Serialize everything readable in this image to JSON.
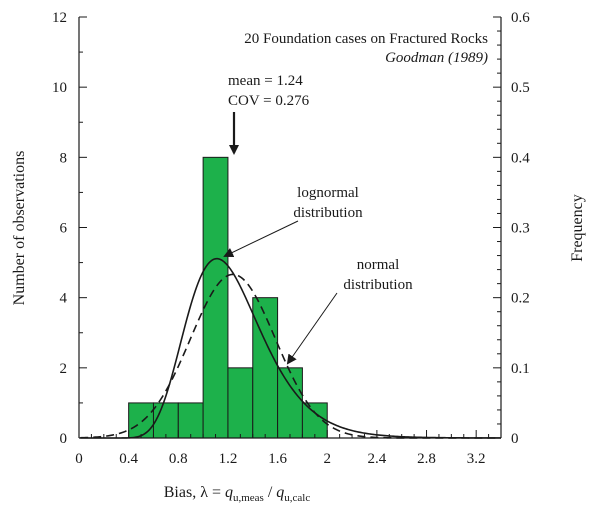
{
  "chart_data": {
    "type": "bar",
    "subtype": "histogram",
    "title": "20 Foundation cases on Fractured Rocks",
    "source": "Goodman (1989)",
    "xlabel_prefix": "Bias, λ = ",
    "xlabel_num": "q",
    "xlabel_num_sub": "u,meas",
    "xlabel_sep": " / ",
    "xlabel_den": "q",
    "xlabel_den_sub": "u,calc",
    "ylabel": "Number of observations",
    "y2label": "Frequency",
    "xlim": [
      0,
      3.4
    ],
    "ylim": [
      0,
      12
    ],
    "y2lim": [
      0,
      0.6
    ],
    "x_ticks": [
      "0",
      "0.4",
      "0.8",
      "1.2",
      "1.6",
      "2",
      "2.4",
      "2.8",
      "3.2"
    ],
    "y_ticks": [
      "0",
      "2",
      "4",
      "6",
      "8",
      "10",
      "12"
    ],
    "y2_ticks": [
      "0",
      "0.1",
      "0.2",
      "0.3",
      "0.4",
      "0.5",
      "0.6"
    ],
    "bin_width": 0.2,
    "bin_starts": [
      0.4,
      0.6,
      0.8,
      1.0,
      1.2,
      1.4,
      1.6,
      1.8
    ],
    "counts": [
      1,
      1,
      1,
      8,
      2,
      4,
      2,
      1
    ],
    "bar_color": "#1db14b",
    "curves": [
      {
        "name": "lognormal distribution",
        "style": "solid",
        "mean": 1.24,
        "cov": 0.276
      },
      {
        "name": "normal distribution",
        "style": "dashed",
        "mean": 1.24,
        "cov": 0.276
      }
    ],
    "annotations": {
      "mean": "mean = 1.24",
      "cov": "COV = 0.276",
      "lognormal_line1": "lognormal",
      "lognormal_line2": "distribution",
      "normal_line1": "normal",
      "normal_line2": "distribution"
    }
  }
}
